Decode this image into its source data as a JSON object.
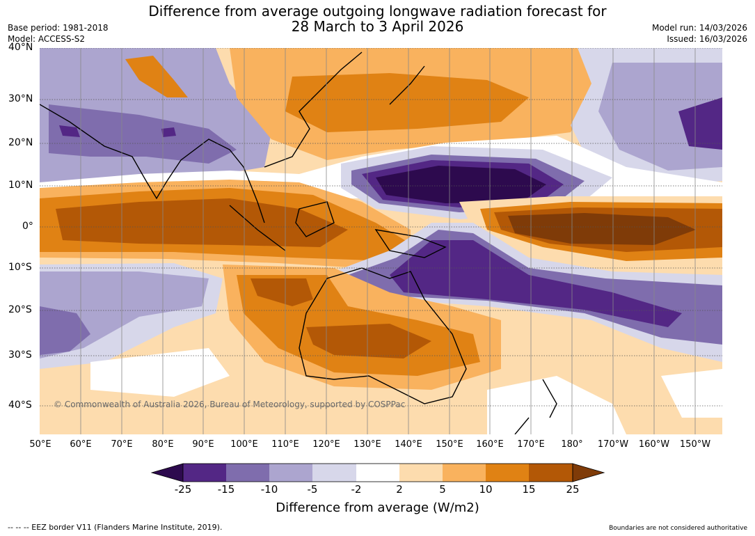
{
  "title_line1": "Difference from average outgoing longwave radiation forecast for",
  "title_line2": "28 March to 3 April 2026",
  "base_period": "Base period: 1981-2018",
  "model": "Model: ACCESS-S2",
  "model_run": "Model run: 14/03/2026",
  "issued": "Issued: 16/03/2026",
  "lat_labels": [
    "40°N",
    "30°N",
    "20°N",
    "10°N",
    "0°",
    "10°S",
    "20°S",
    "30°S",
    "40°S"
  ],
  "lon_labels": [
    "50°E",
    "60°E",
    "70°E",
    "80°E",
    "90°E",
    "100°E",
    "110°E",
    "120°E",
    "130°E",
    "140°E",
    "150°E",
    "160°E",
    "170°E",
    "180°",
    "170°W",
    "160°W",
    "150°W"
  ],
  "copyright": "© Commonwealth of Australia 2026, Bureau of Meteorology, supported by COSPPac",
  "colorbar": {
    "ticks": [
      "-25",
      "-15",
      "-10",
      "-5",
      "-2",
      "2",
      "5",
      "10",
      "15",
      "25"
    ],
    "label": "Difference from average (W/m2)",
    "colors": [
      "#2d0a4e",
      "#532785",
      "#7f6dad",
      "#aca5cf",
      "#d7d7ea",
      "#ffffff",
      "#fddcae",
      "#f9b25e",
      "#e08214",
      "#b35806",
      "#7f3b08"
    ]
  },
  "footer_left": "--  --  -- EEZ border V11 (Flanders Marine Institute, 2019).",
  "footer_right": "Boundaries are not considered authoritative"
}
